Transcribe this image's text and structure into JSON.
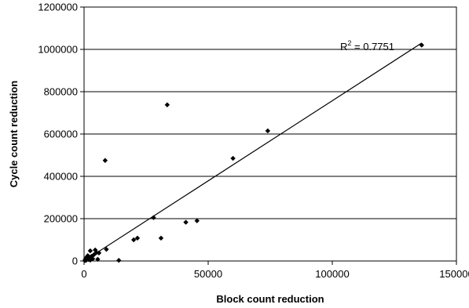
{
  "chart_data": {
    "type": "scatter",
    "title": "",
    "xlabel": "Block count reduction",
    "ylabel": "Cycle count reduction",
    "xlim": [
      0,
      150000
    ],
    "ylim": [
      0,
      1200000
    ],
    "xticks": [
      0,
      50000,
      100000,
      150000
    ],
    "yticks": [
      0,
      200000,
      400000,
      600000,
      800000,
      1000000,
      1200000
    ],
    "x_tick_labels": [
      "0",
      "50000",
      "100000",
      "150000"
    ],
    "y_tick_labels": [
      "0",
      "200000",
      "400000",
      "600000",
      "800000",
      "1000000",
      "1200000"
    ],
    "grid": "horizontal",
    "legend": "none",
    "marker": "diamond",
    "marker_color": "#000000",
    "trendline": {
      "type": "linear",
      "from": [
        0,
        0
      ],
      "to": [
        136000,
        1030000
      ],
      "r2_label": "R",
      "r2_sup": "2",
      "r2_value": " = 0.7751"
    },
    "points": [
      {
        "x": 300,
        "y": 2000
      },
      {
        "x": 500,
        "y": 8000
      },
      {
        "x": 700,
        "y": 3000
      },
      {
        "x": 900,
        "y": 15000
      },
      {
        "x": 1000,
        "y": 5000
      },
      {
        "x": 1200,
        "y": 20000
      },
      {
        "x": 1400,
        "y": 10000
      },
      {
        "x": 1500,
        "y": 25000
      },
      {
        "x": 1800,
        "y": 7000
      },
      {
        "x": 2000,
        "y": 12000
      },
      {
        "x": 2200,
        "y": 18000
      },
      {
        "x": 2500,
        "y": 4000
      },
      {
        "x": 2500,
        "y": 48000
      },
      {
        "x": 3000,
        "y": 22000
      },
      {
        "x": 3500,
        "y": 10000
      },
      {
        "x": 4000,
        "y": 30000
      },
      {
        "x": 4500,
        "y": 52000
      },
      {
        "x": 5000,
        "y": 40000
      },
      {
        "x": 5500,
        "y": 8000
      },
      {
        "x": 6000,
        "y": 38000
      },
      {
        "x": 8500,
        "y": 475000
      },
      {
        "x": 9000,
        "y": 55000
      },
      {
        "x": 14000,
        "y": 3000
      },
      {
        "x": 20000,
        "y": 100000
      },
      {
        "x": 21500,
        "y": 108000
      },
      {
        "x": 28000,
        "y": 205000
      },
      {
        "x": 31000,
        "y": 108000
      },
      {
        "x": 33500,
        "y": 738000
      },
      {
        "x": 41000,
        "y": 183000
      },
      {
        "x": 45500,
        "y": 190000
      },
      {
        "x": 60000,
        "y": 485000
      },
      {
        "x": 74000,
        "y": 615000
      },
      {
        "x": 136000,
        "y": 1020000
      }
    ]
  }
}
